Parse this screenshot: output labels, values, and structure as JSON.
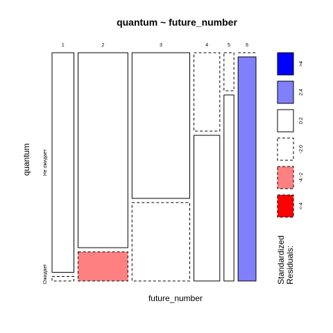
{
  "chart_data": {
    "type": "mosaic",
    "title": "quantum ~ future_number",
    "xlabel": "future_number",
    "ylabel": "quantum",
    "x_categories": [
      "1",
      "2",
      "3",
      "4",
      "5",
      "6"
    ],
    "y_categories": [
      "Не ожидает",
      "Ожидает"
    ],
    "column_widths": [
      0.11,
      0.25,
      0.29,
      0.13,
      0.05,
      0.09
    ],
    "cells": [
      {
        "x": "1",
        "y": "Не ожидает",
        "share": 0.98,
        "residual": 0.5
      },
      {
        "x": "1",
        "y": "Ожидает",
        "share": 0.02,
        "residual": -0.5
      },
      {
        "x": "2",
        "y": "Не ожидает",
        "share": 0.87,
        "residual": 1.0
      },
      {
        "x": "2",
        "y": "Ожидает",
        "share": 0.13,
        "residual": -2.5
      },
      {
        "x": "3",
        "y": "Не ожидает",
        "share": 0.65,
        "residual": 0.5
      },
      {
        "x": "3",
        "y": "Ожидает",
        "share": 0.35,
        "residual": -0.5
      },
      {
        "x": "4",
        "y": "Не ожидает",
        "share": 0.35,
        "residual": -0.5
      },
      {
        "x": "4",
        "y": "Ожидает",
        "share": 0.65,
        "residual": 0.5
      },
      {
        "x": "5",
        "y": "Не ожидает",
        "share": 0.17,
        "residual": -0.5
      },
      {
        "x": "5",
        "y": "Ожидает",
        "share": 0.83,
        "residual": 0.5
      },
      {
        "x": "6",
        "y": "Не ожидает",
        "share": 0.0,
        "residual": -0.5
      },
      {
        "x": "6",
        "y": "Ожидает",
        "share": 1.0,
        "residual": 3.0
      }
    ],
    "legend": {
      "title_line1": "Standardized",
      "title_line2": "Residuals:",
      "entries": [
        {
          "label": ">4",
          "fill": "#0000ff",
          "border": "solid"
        },
        {
          "label": "2:4",
          "fill": "#8080ff",
          "border": "solid"
        },
        {
          "label": "0:2",
          "fill": "#ffffff",
          "border": "solid"
        },
        {
          "label": "-2:0",
          "fill": "#ffffff",
          "border": "dashed"
        },
        {
          "label": "-4:-2",
          "fill": "#ff8080",
          "border": "dashed"
        },
        {
          "label": "<-4",
          "fill": "#ff0000",
          "border": "dashed"
        }
      ],
      "position": "right"
    }
  }
}
